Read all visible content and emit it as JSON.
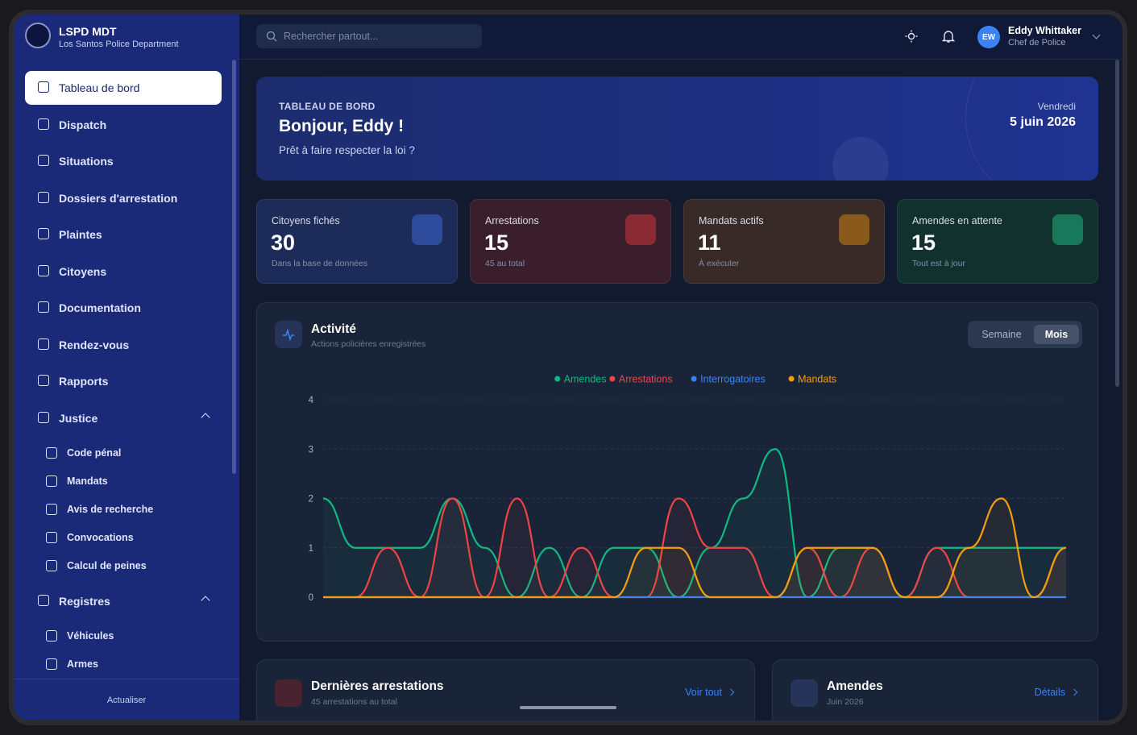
{
  "sidebar": {
    "brand": "LSPD MDT",
    "subtitle": "Los Santos Police Department",
    "nav": [
      "Tableau de bord",
      "Dispatch",
      "Situations",
      "Dossiers d'arrestation",
      "Plaintes",
      "Citoyens",
      "Documentation",
      "Rendez-vous",
      "Rapports"
    ],
    "justice": {
      "label": "Justice",
      "items": [
        "Code pénal",
        "Mandats",
        "Avis de recherche",
        "Convocations",
        "Calcul de peines"
      ]
    },
    "registres": {
      "label": "Registres",
      "items": [
        "Véhicules",
        "Armes"
      ]
    },
    "refresh": "Actualiser"
  },
  "topbar": {
    "search_placeholder": "Rechercher partout...",
    "user": {
      "initials": "EW",
      "name": "Eddy Whittaker",
      "role": "Chef de Police"
    }
  },
  "hero": {
    "kicker": "TABLEAU DE BORD",
    "greeting": "Bonjour, Eddy !",
    "tagline": "Prêt à faire respecter la loi ?",
    "weekday": "Vendredi",
    "date": "5 juin 2026"
  },
  "stats": [
    {
      "label": "Citoyens fichés",
      "value": 30,
      "note": "Dans la base de données"
    },
    {
      "label": "Arrestations",
      "value": 15,
      "note": "45 au total"
    },
    {
      "label": "Mandats actifs",
      "value": 11,
      "note": "À exécuter"
    },
    {
      "label": "Amendes en attente",
      "value": 15,
      "note": "Tout est à jour"
    }
  ],
  "activity": {
    "title": "Activité",
    "subtitle": "Actions policières enregistrées",
    "toggle": [
      "Semaine",
      "Mois"
    ],
    "chart": {
      "type": "line",
      "ylim": [
        0,
        4
      ],
      "yticks": [
        0,
        1,
        2,
        3,
        4
      ],
      "grid": true,
      "series": [
        {
          "name": "Amendes",
          "color": "#10b981",
          "values": [
            2,
            1,
            1,
            1,
            2,
            1,
            0,
            1,
            0,
            1,
            1,
            0,
            1,
            2,
            3,
            0,
            1,
            1,
            0,
            1,
            1,
            1,
            1,
            1
          ]
        },
        {
          "name": "Arrestations",
          "color": "#ef4444",
          "values": [
            0,
            0,
            1,
            0,
            2,
            0,
            2,
            0,
            1,
            0,
            0,
            2,
            1,
            1,
            0,
            1,
            0,
            1,
            0,
            1,
            0,
            0,
            0,
            1
          ]
        },
        {
          "name": "Interrogatoires",
          "color": "#3b82f6",
          "values": [
            0,
            0,
            0,
            0,
            0,
            0,
            0,
            0,
            0,
            0,
            0,
            0,
            0,
            0,
            0,
            0,
            0,
            0,
            0,
            0,
            0,
            0,
            0,
            0
          ]
        },
        {
          "name": "Mandats",
          "color": "#f59e0b",
          "values": [
            0,
            0,
            0,
            0,
            0,
            0,
            0,
            0,
            0,
            0,
            1,
            1,
            0,
            0,
            0,
            1,
            1,
            1,
            0,
            0,
            1,
            2,
            0,
            1
          ]
        }
      ]
    }
  },
  "bottom": [
    {
      "title": "Dernières arrestations",
      "subtitle": "45 arrestations au total",
      "link": "Voir tout"
    },
    {
      "title": "Amendes",
      "subtitle": "Juin 2026",
      "link": "Détails"
    }
  ]
}
